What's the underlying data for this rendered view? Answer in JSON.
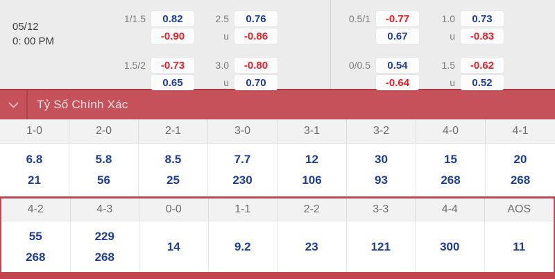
{
  "colors": {
    "blue": "#1d3d99",
    "red": "#ee1c24",
    "bar_red": "#c5525b",
    "bar_border": "#a63b42",
    "section_border": "#bc4750",
    "bottom_bar": "#c2454e",
    "top_bg": "#ececec",
    "header_bg": "#f3f2f2"
  },
  "match": {
    "date": "05/12",
    "time": "0: 00 PM"
  },
  "odds_groups": [
    {
      "name": "handicap-left",
      "pairs": [
        [
          {
            "label": "1/1.5",
            "value": "0.82",
            "color": "blue"
          },
          {
            "label": "",
            "value": "-0.90",
            "color": "red"
          }
        ],
        [
          {
            "label": "1.5/2",
            "value": "-0.73",
            "color": "red"
          },
          {
            "label": "",
            "value": "0.65",
            "color": "blue"
          }
        ]
      ]
    },
    {
      "name": "total-left",
      "pairs": [
        [
          {
            "label": "2.5",
            "value": "0.76",
            "color": "blue"
          },
          {
            "label": "u",
            "value": "-0.86",
            "color": "red"
          }
        ],
        [
          {
            "label": "3.0",
            "value": "-0.80",
            "color": "red"
          },
          {
            "label": "u",
            "value": "0.70",
            "color": "blue"
          }
        ]
      ]
    },
    {
      "name": "handicap-right",
      "pairs": [
        [
          {
            "label": "0.5/1",
            "value": "-0.77",
            "color": "red"
          },
          {
            "label": "",
            "value": "0.67",
            "color": "blue"
          }
        ],
        [
          {
            "label": "0/0.5",
            "value": "0.54",
            "color": "blue"
          },
          {
            "label": "",
            "value": "-0.64",
            "color": "red"
          }
        ]
      ]
    },
    {
      "name": "total-right",
      "pairs": [
        [
          {
            "label": "1.0",
            "value": "0.73",
            "color": "blue"
          },
          {
            "label": "u",
            "value": "-0.83",
            "color": "red"
          }
        ],
        [
          {
            "label": "1.5",
            "value": "-0.62",
            "color": "red"
          },
          {
            "label": "u",
            "value": "0.52",
            "color": "blue"
          }
        ]
      ]
    }
  ],
  "section_header": {
    "title": "Tỷ Số Chính Xác",
    "chevron_icon": "chevron-down"
  },
  "correct_score": {
    "rows": [
      [
        {
          "score": "1-0",
          "odds": [
            "6.8",
            "21"
          ]
        },
        {
          "score": "2-0",
          "odds": [
            "5.8",
            "56"
          ]
        },
        {
          "score": "2-1",
          "odds": [
            "8.5",
            "25"
          ]
        },
        {
          "score": "3-0",
          "odds": [
            "7.7",
            "230"
          ]
        },
        {
          "score": "3-1",
          "odds": [
            "12",
            "106"
          ]
        },
        {
          "score": "3-2",
          "odds": [
            "30",
            "93"
          ]
        },
        {
          "score": "4-0",
          "odds": [
            "15",
            "268"
          ]
        },
        {
          "score": "4-1",
          "odds": [
            "20",
            "268"
          ]
        }
      ],
      [
        {
          "score": "4-2",
          "odds": [
            "55",
            "268"
          ]
        },
        {
          "score": "4-3",
          "odds": [
            "229",
            "268"
          ]
        },
        {
          "score": "0-0",
          "odds": [
            "14"
          ]
        },
        {
          "score": "1-1",
          "odds": [
            "9.2"
          ]
        },
        {
          "score": "2-2",
          "odds": [
            "23"
          ]
        },
        {
          "score": "3-3",
          "odds": [
            "121"
          ]
        },
        {
          "score": "4-4",
          "odds": [
            "300"
          ]
        },
        {
          "score": "AOS",
          "odds": [
            "11"
          ]
        }
      ]
    ]
  }
}
